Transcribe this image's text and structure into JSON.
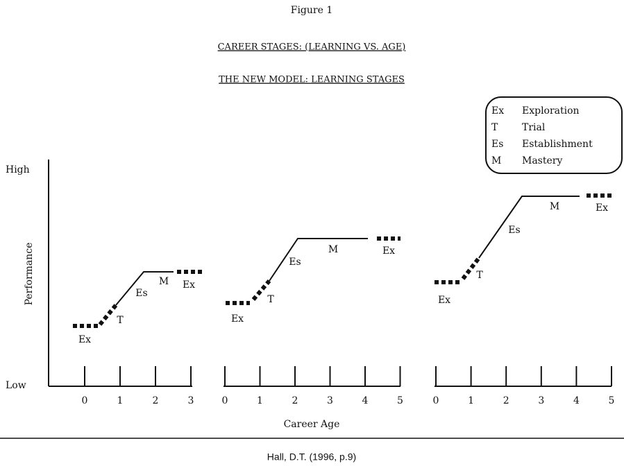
{
  "figure_label": "Figure 1",
  "title": "CAREER STAGES: (LEARNING VS. AGE)",
  "subtitle": "THE NEW MODEL: LEARNING STAGES",
  "legend": [
    {
      "abbr": "Ex",
      "name": "Exploration"
    },
    {
      "abbr": "T",
      "name": "Trial"
    },
    {
      "abbr": "Es",
      "name": "Establishment"
    },
    {
      "abbr": "M",
      "name": "Mastery"
    }
  ],
  "y_axis": {
    "label": "Performance",
    "high": "High",
    "low": "Low"
  },
  "x_axis": {
    "label": "Career Age",
    "panels": [
      {
        "ticks": [
          "0",
          "1",
          "2",
          "3"
        ],
        "stage_labels": [
          "Ex",
          "T",
          "Es",
          "M",
          "Ex"
        ]
      },
      {
        "ticks": [
          "0",
          "1",
          "2",
          "3",
          "4",
          "5"
        ],
        "stage_labels": [
          "Ex",
          "T",
          "Es",
          "M",
          "Ex"
        ]
      },
      {
        "ticks": [
          "0",
          "1",
          "2",
          "3",
          "4",
          "5"
        ],
        "stage_labels": [
          "Ex",
          "T",
          "Es",
          "M",
          "Ex"
        ]
      }
    ]
  },
  "source": "Hall, D.T. (1996, p.9)"
}
